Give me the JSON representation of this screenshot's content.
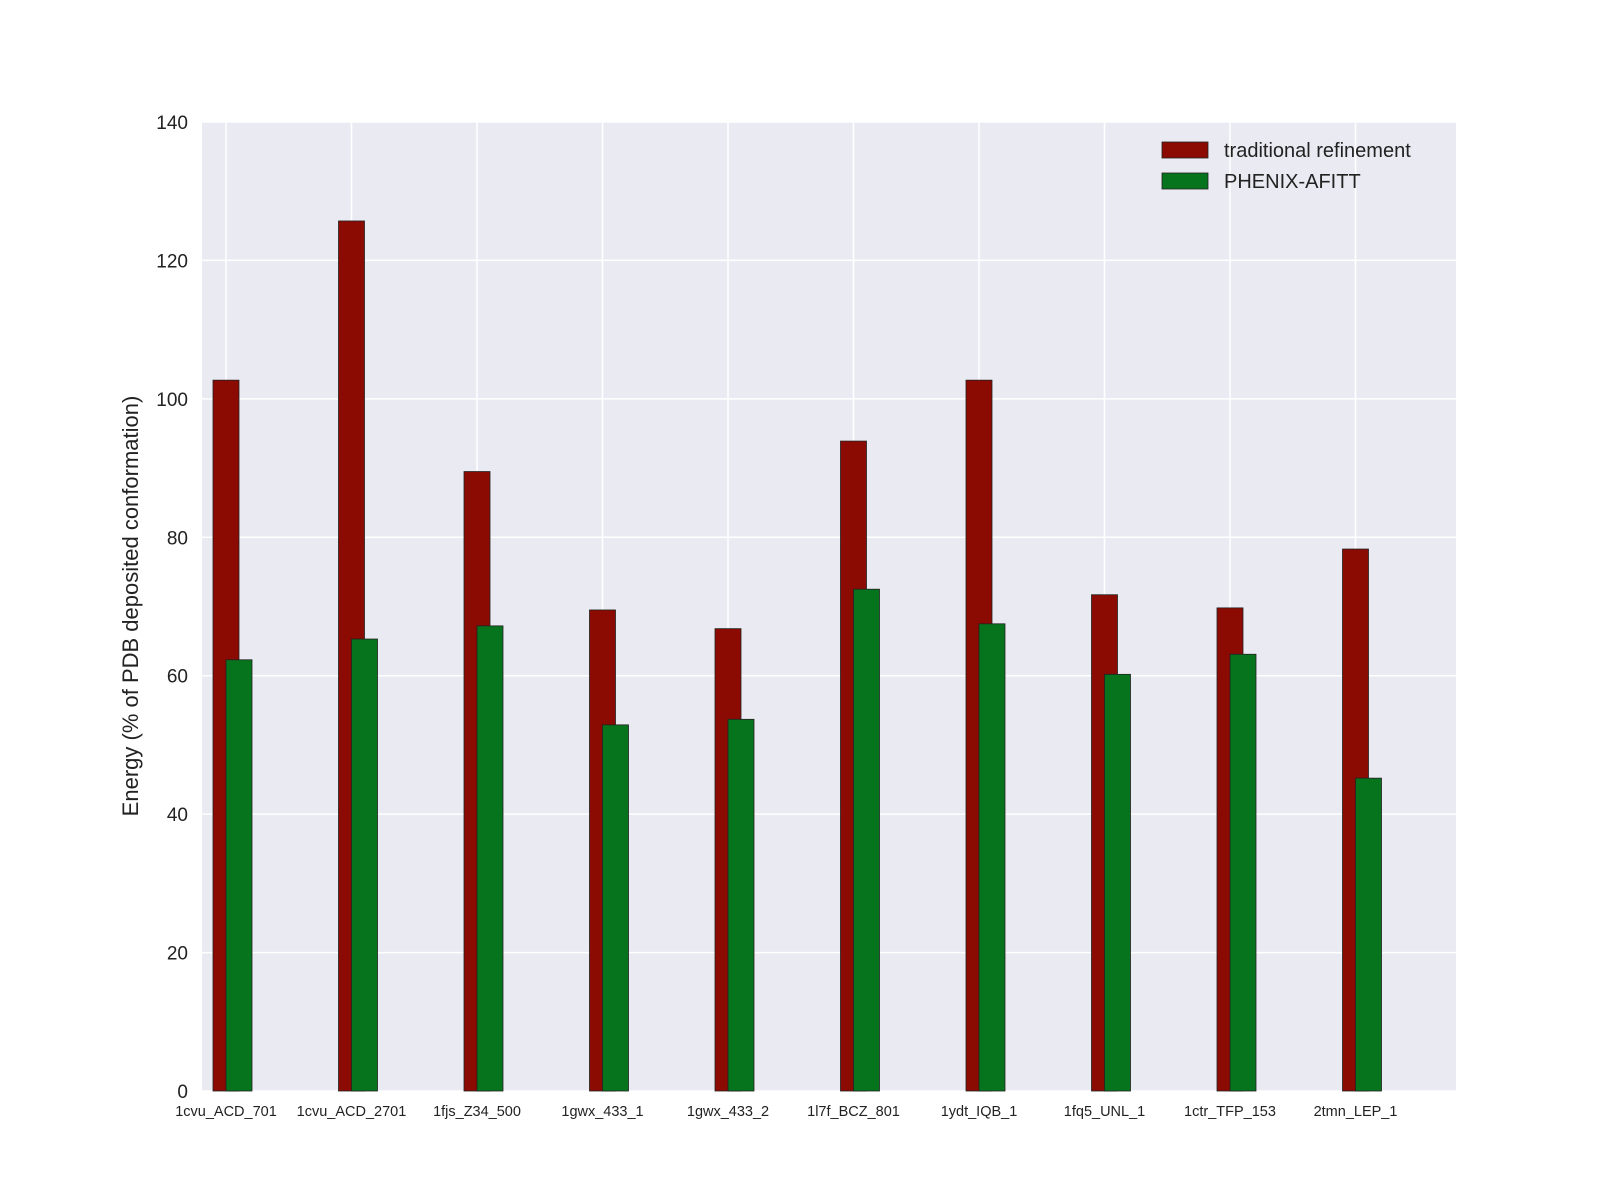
{
  "chart_data": {
    "type": "bar",
    "title": "",
    "xlabel": "",
    "ylabel": "Energy (% of PDB deposited conformation)",
    "ylim": [
      0,
      140
    ],
    "yticks": [
      0,
      20,
      40,
      60,
      80,
      100,
      120,
      140
    ],
    "grid": true,
    "legend_position": "top-right",
    "categories": [
      "1cvu_ACD_701",
      "1cvu_ACD_2701",
      "1fjs_Z34_500",
      "1gwx_433_1",
      "1gwx_433_2",
      "1l7f_BCZ_801",
      "1ydt_IQB_1",
      "1fq5_UNL_1",
      "1ctr_TFP_153",
      "2tmn_LEP_1"
    ],
    "series": [
      {
        "name": "traditional refinement",
        "color": "#8b0a02",
        "values": [
          102.7,
          125.7,
          89.5,
          69.5,
          66.8,
          93.9,
          102.7,
          71.7,
          69.8,
          78.3
        ]
      },
      {
        "name": "PHENIX-AFITT",
        "color": "#06741c",
        "values": [
          62.3,
          65.3,
          67.2,
          52.9,
          53.7,
          72.5,
          67.5,
          60.2,
          63.1,
          45.2
        ]
      }
    ],
    "background": "#eaeaf2"
  }
}
